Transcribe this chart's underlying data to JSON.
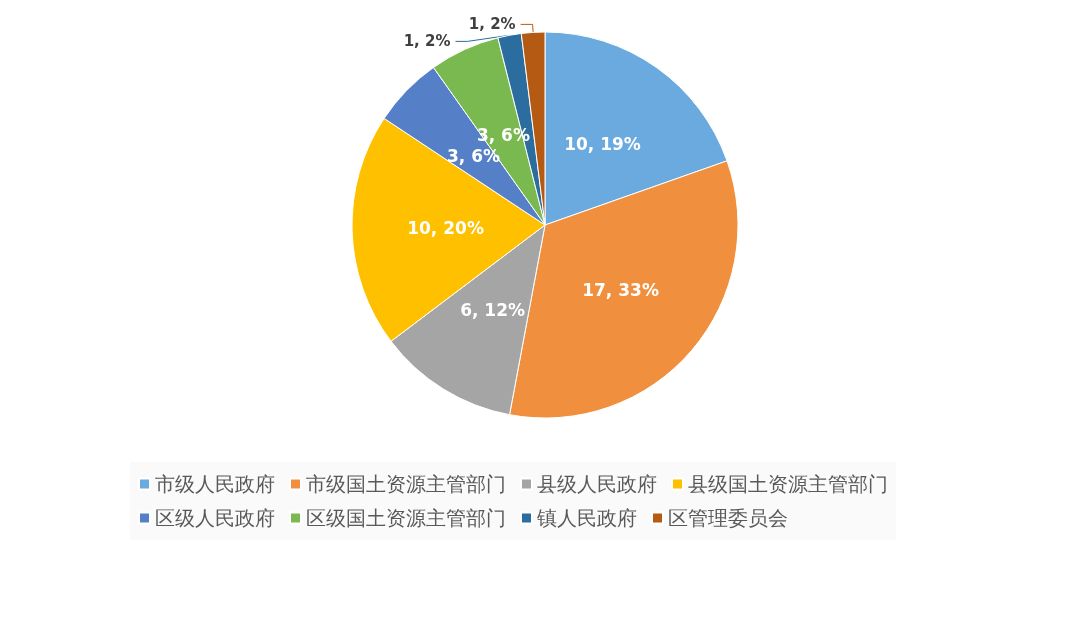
{
  "chart_data": {
    "type": "pie",
    "categories": [
      "市级人民政府",
      "市级国土资源主管部门",
      "县级人民政府",
      "县级国土资源主管部门",
      "区级人民政府",
      "区级国土资源主管部门",
      "镇人民政府",
      "区管理委员会"
    ],
    "values": [
      10,
      17,
      6,
      10,
      3,
      3,
      1,
      1
    ],
    "colors": [
      "#6aaade",
      "#f0903f",
      "#a5a5a5",
      "#ffc000",
      "#5580c8",
      "#7ab850",
      "#2b6d9e",
      "#b55a12"
    ],
    "value_labels": [
      "10, 19%",
      "17, 33%",
      "6, 12%",
      "10, 20%",
      "3, 6%",
      "3, 6%",
      "1, 2%",
      "1, 2%"
    ],
    "legend": "bottom"
  }
}
